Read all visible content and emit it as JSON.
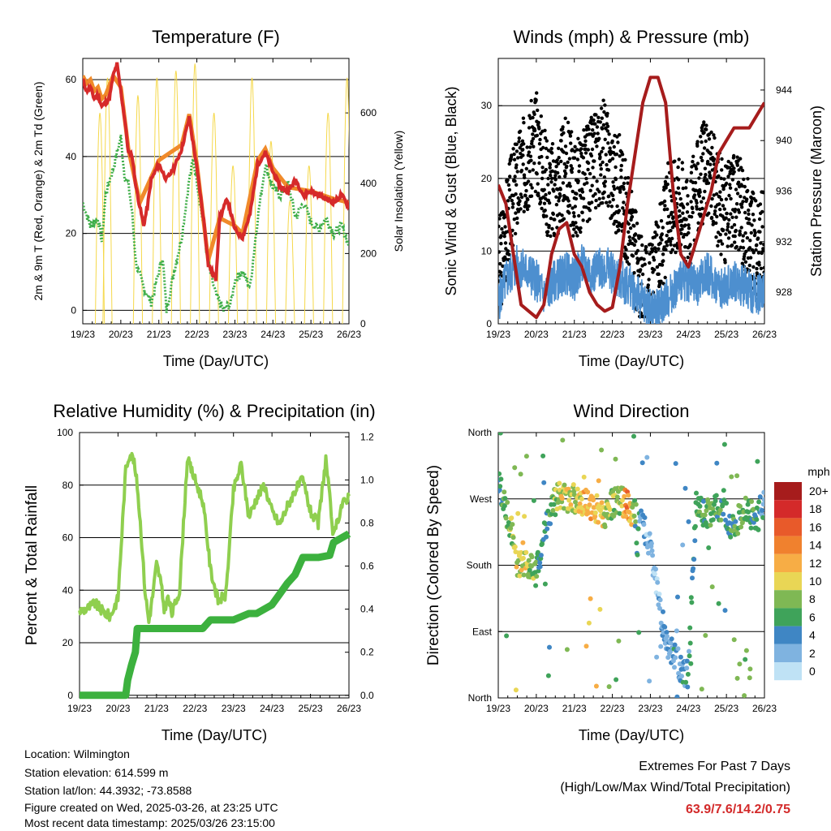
{
  "charts": {
    "temperature": {
      "title": "Temperature (F)",
      "xlabel": "Time (Day/UTC)",
      "ylabel_left": "2m & 9m T (Red, Orange) & 2m Td (Green)",
      "ylabel_right": "Solar Insolation (Yellow)"
    },
    "winds": {
      "title": "Winds (mph) & Pressure (mb)",
      "xlabel": "Time (Day/UTC)",
      "ylabel_left": "Sonic Wind & Gust (Blue, Black)",
      "ylabel_right": "Station Pressure (Maroon)"
    },
    "humidity": {
      "title": "Relative Humidity (%) & Precipitation (in)",
      "xlabel": "Time (Day/UTC)",
      "ylabel_left": "Percent & Total Rainfall"
    },
    "direction": {
      "title": "Wind Direction",
      "xlabel": "Time (Day/UTC)",
      "ylabel_left": "Direction (Colored By Speed)",
      "legend_title": "mph"
    }
  },
  "chart_data": [
    {
      "type": "line",
      "title": "Temperature (F)",
      "xlabel": "Time (Day/UTC)",
      "ylabel": "2m & 9m T (Red, Orange) & 2m Td (Green)",
      "y2label": "Solar Insolation (Yellow)",
      "x_ticks": [
        "19/23",
        "20/23",
        "21/23",
        "22/23",
        "23/23",
        "24/23",
        "25/23",
        "26/23"
      ],
      "xlim": [
        0,
        7
      ],
      "ylim": [
        -3.5,
        65.5
      ],
      "y_ticks": [
        0,
        20,
        40,
        60
      ],
      "y2lim": [
        0,
        755
      ],
      "y2_ticks": [
        0,
        200,
        400,
        600
      ],
      "grid": "horizontal at left y ticks",
      "series": [
        {
          "name": "2m T",
          "color": "#d62a2a",
          "axis": "left",
          "x": [
            0,
            0.1,
            0.2,
            0.3,
            0.4,
            0.5,
            0.7,
            0.8,
            0.9,
            1.0,
            1.1,
            1.2,
            1.3,
            1.4,
            1.5,
            1.6,
            1.7,
            1.8,
            2.0,
            2.2,
            2.4,
            2.6,
            2.8,
            3.0,
            3.2,
            3.3,
            3.5,
            3.6,
            3.8,
            4.0,
            4.2,
            4.4,
            4.6,
            4.8,
            5.0,
            5.1,
            5.2,
            5.4,
            5.6,
            5.8,
            6.0,
            6.2,
            6.4,
            6.6,
            6.8,
            7.0
          ],
          "y": [
            60,
            57,
            58,
            55,
            56,
            53,
            55,
            61,
            64,
            57,
            50,
            41,
            40,
            32,
            27,
            22,
            27,
            34,
            38,
            34,
            37,
            42,
            50,
            37,
            22,
            12,
            8,
            24,
            29,
            21,
            19,
            25,
            38,
            41,
            36,
            34,
            32,
            31,
            34,
            30,
            31,
            30,
            29,
            28,
            30,
            27
          ]
        },
        {
          "name": "9m T",
          "color": "#f08a2a",
          "axis": "left",
          "x": [
            0,
            0.1,
            0.2,
            0.3,
            0.4,
            0.5,
            0.6,
            0.8,
            1.0,
            1.2,
            1.5,
            2.0,
            2.6,
            2.8,
            3.0,
            3.3,
            3.6,
            4.0,
            4.2,
            4.6,
            4.8,
            5.0,
            5.4,
            6.0,
            6.6,
            7.0
          ],
          "y": [
            61,
            59,
            60,
            57,
            58,
            55,
            56,
            61,
            58,
            42,
            28,
            39,
            43,
            51,
            38,
            13,
            24,
            22,
            20,
            39,
            42,
            37,
            32,
            31,
            29,
            28
          ]
        },
        {
          "name": "2m Td",
          "color": "#3fae49",
          "axis": "left",
          "x": [
            0,
            0.2,
            0.4,
            0.5,
            0.6,
            0.8,
            1.0,
            1.1,
            1.2,
            1.3,
            1.4,
            1.6,
            1.8,
            2.0,
            2.1,
            2.2,
            2.4,
            2.6,
            2.8,
            2.9,
            3.0,
            3.2,
            3.3,
            3.5,
            3.7,
            3.9,
            4.0,
            4.2,
            4.4,
            4.6,
            4.8,
            5.0,
            5.2,
            5.4,
            5.6,
            5.8,
            6.0,
            6.2,
            6.4,
            6.6,
            6.8,
            7.0
          ],
          "y": [
            28,
            22,
            24,
            18,
            30,
            37,
            45,
            35,
            33,
            25,
            12,
            6,
            2,
            10,
            14,
            0,
            10,
            19,
            34,
            39,
            34,
            20,
            12,
            4,
            0,
            2,
            8,
            10,
            6,
            24,
            38,
            32,
            30,
            33,
            24,
            28,
            23,
            21,
            24,
            20,
            22,
            17
          ]
        },
        {
          "name": "Solar Insolation",
          "color": "#f5d84a",
          "axis": "right",
          "type": "daily-pulses",
          "peak_times": [
            0.45,
            0.65,
            1.45,
            1.95,
            2.45,
            2.95,
            3.45,
            3.95,
            4.45,
            4.95,
            5.45,
            5.95,
            6.45,
            6.95
          ],
          "peak_values": [
            600,
            700,
            650,
            700,
            720,
            740,
            600,
            450,
            700,
            520,
            350,
            450,
            600,
            700
          ]
        }
      ]
    },
    {
      "type": "scatter",
      "title": "Winds (mph) & Pressure (mb)",
      "xlabel": "Time (Day/UTC)",
      "ylabel": "Sonic Wind & Gust (Blue, Black)",
      "y2label": "Station Pressure (Maroon)",
      "x_ticks": [
        "19/23",
        "20/23",
        "21/23",
        "22/23",
        "23/23",
        "24/23",
        "25/23",
        "26/23"
      ],
      "xlim": [
        0,
        7
      ],
      "ylim": [
        0,
        36.5
      ],
      "y_ticks": [
        0,
        10,
        20,
        30
      ],
      "y2lim": [
        925.5,
        946.5
      ],
      "y2_ticks": [
        928,
        932,
        936,
        940,
        944
      ],
      "grid": "horizontal at left y ticks",
      "series": [
        {
          "name": "Gust",
          "color": "#000000",
          "style": "dots",
          "x": [
            0,
            0.3,
            0.6,
            1.0,
            1.3,
            1.5,
            1.8,
            2.0,
            2.2,
            2.5,
            2.8,
            3.0,
            3.2,
            3.5,
            3.8,
            4.0,
            4.2,
            4.5,
            4.8,
            5.0,
            5.2,
            5.5,
            5.8,
            6.0,
            6.2,
            6.5,
            6.8,
            7.0
          ],
          "y": [
            7,
            16,
            21,
            25,
            19,
            18,
            22,
            18,
            20,
            22,
            24,
            20,
            19,
            12,
            4,
            4,
            8,
            16,
            17,
            13,
            18,
            22,
            17,
            15,
            18,
            14,
            10,
            12
          ]
        },
        {
          "name": "Sonic Wind",
          "color": "#4d8fcf",
          "style": "line",
          "x": [
            0,
            0.2,
            0.5,
            0.8,
            1.0,
            1.2,
            1.5,
            1.8,
            2.0,
            2.2,
            2.5,
            2.8,
            3.0,
            3.2,
            3.5,
            3.8,
            4.0,
            4.2,
            4.5,
            4.8,
            5.0,
            5.2,
            5.5,
            5.8,
            6.0,
            6.2,
            6.5,
            6.8,
            7.0
          ],
          "y": [
            3,
            6,
            8,
            7,
            6,
            4,
            6,
            7,
            6,
            8,
            7,
            8,
            7,
            6,
            5,
            3,
            2,
            2,
            4,
            6,
            6,
            5,
            7,
            5,
            5,
            6,
            5,
            4,
            5
          ]
        },
        {
          "name": "Station Pressure",
          "color": "#a61c1c",
          "axis": "right",
          "x": [
            0,
            0.2,
            0.4,
            0.6,
            0.8,
            1.0,
            1.2,
            1.4,
            1.6,
            1.8,
            2.0,
            2.2,
            2.4,
            2.6,
            2.8,
            3.0,
            3.2,
            3.4,
            3.6,
            3.8,
            4.0,
            4.2,
            4.4,
            4.6,
            4.8,
            5.0,
            5.2,
            5.4,
            5.6,
            5.8,
            6.0,
            6.2,
            6.4,
            6.6,
            6.8,
            7.0
          ],
          "y": [
            936.5,
            935,
            931,
            927,
            926.5,
            926,
            927,
            931,
            933,
            933.5,
            931,
            930,
            928,
            927,
            926.5,
            926.8,
            930,
            935,
            939,
            943,
            945,
            945,
            943,
            936,
            931,
            930,
            932,
            934,
            936,
            939,
            940,
            941,
            941,
            941,
            942,
            943
          ]
        }
      ]
    },
    {
      "type": "line",
      "title": "Relative Humidity (%) & Precipitation (in)",
      "xlabel": "Time (Day/UTC)",
      "ylabel": "Percent & Total Rainfall",
      "x_ticks": [
        "19/23",
        "20/23",
        "21/23",
        "22/23",
        "23/23",
        "24/23",
        "25/23",
        "26/23"
      ],
      "xlim": [
        0,
        7
      ],
      "ylim": [
        -1,
        100
      ],
      "y_ticks": [
        0,
        20,
        40,
        60,
        80,
        100
      ],
      "y2lim": [
        -0.012,
        1.22
      ],
      "y2_ticks": [
        0.0,
        0.2,
        0.4,
        0.6,
        0.8,
        1.0,
        1.2
      ],
      "grid": "horizontal at left y ticks",
      "series": [
        {
          "name": "Relative Humidity",
          "color": "#8fcf4f",
          "axis": "left",
          "x": [
            0,
            0.2,
            0.4,
            0.6,
            0.8,
            1.0,
            1.2,
            1.3,
            1.4,
            1.5,
            1.6,
            1.7,
            1.8,
            1.9,
            2.0,
            2.1,
            2.2,
            2.3,
            2.4,
            2.6,
            2.8,
            3.0,
            3.2,
            3.3,
            3.4,
            3.6,
            3.8,
            4.0,
            4.2,
            4.4,
            4.6,
            4.8,
            5.0,
            5.2,
            5.4,
            5.6,
            5.8,
            6.0,
            6.2,
            6.4,
            6.6,
            6.8,
            7.0
          ],
          "y": [
            32,
            33,
            35,
            32,
            30,
            37,
            86,
            92,
            90,
            80,
            62,
            40,
            28,
            38,
            50,
            44,
            33,
            37,
            31,
            40,
            90,
            82,
            74,
            62,
            48,
            36,
            38,
            78,
            88,
            68,
            75,
            80,
            70,
            65,
            72,
            78,
            82,
            70,
            65,
            90,
            60,
            72,
            76
          ]
        },
        {
          "name": "Total Precipitation",
          "color": "#3cb13e",
          "axis": "right",
          "x": [
            0,
            1.2,
            1.25,
            1.35,
            1.45,
            1.5,
            1.6,
            2.5,
            3.2,
            3.4,
            4.0,
            4.4,
            4.6,
            5.0,
            5.2,
            5.4,
            5.6,
            5.8,
            6.2,
            6.5,
            6.6,
            7.0
          ],
          "y": [
            0,
            0,
            0.07,
            0.14,
            0.2,
            0.31,
            0.31,
            0.31,
            0.31,
            0.35,
            0.35,
            0.38,
            0.38,
            0.42,
            0.47,
            0.52,
            0.56,
            0.64,
            0.64,
            0.65,
            0.71,
            0.75
          ]
        }
      ]
    },
    {
      "type": "scatter",
      "title": "Wind Direction",
      "xlabel": "Time (Day/UTC)",
      "ylabel": "Direction (Colored By Speed)",
      "x_ticks": [
        "19/23",
        "20/23",
        "21/23",
        "22/23",
        "23/23",
        "24/23",
        "25/23",
        "26/23"
      ],
      "xlim": [
        0,
        7
      ],
      "ylim": [
        0,
        360
      ],
      "y_tick_values": [
        0,
        90,
        180,
        270,
        360
      ],
      "y_ticks": [
        "North",
        "East",
        "South",
        "West",
        "North"
      ],
      "grid": "horizontal at direction ticks",
      "legend": {
        "title": "mph",
        "placement": "right",
        "labels": [
          "20+",
          "18",
          "16",
          "14",
          "12",
          "10",
          "8",
          "6",
          "4",
          "2",
          "0"
        ],
        "colors": [
          "#a61c1c",
          "#d42a2a",
          "#e85a2a",
          "#f0812e",
          "#f7ad45",
          "#e9d655",
          "#7fb854",
          "#3fa35a",
          "#3f86c4",
          "#7fb3e0",
          "#bfe2f5"
        ]
      },
      "series": [
        {
          "name": "",
          "style": "clusters",
          "x": [
            0,
            0.3,
            0.5,
            0.8,
            1.0,
            1.2,
            1.5,
            1.7,
            2.0,
            2.2,
            2.5,
            2.8,
            3.0,
            3.2,
            3.4,
            3.6,
            3.8,
            4.0,
            4.2,
            4.4,
            4.6,
            4.8,
            5.0,
            5.2,
            5.5,
            5.8,
            6.0,
            6.2,
            6.5,
            6.8,
            7.0
          ],
          "y": [
            290,
            240,
            180,
            180,
            170,
            220,
            270,
            275,
            270,
            265,
            260,
            250,
            265,
            270,
            260,
            250,
            230,
            210,
            140,
            80,
            60,
            40,
            30,
            260,
            250,
            260,
            245,
            230,
            260,
            240,
            270
          ],
          "speed": [
            5,
            8,
            10,
            9,
            6,
            4,
            8,
            10,
            9,
            11,
            12,
            9,
            8,
            8,
            14,
            6,
            3,
            2,
            2,
            3,
            4,
            3,
            4,
            6,
            7,
            6,
            5,
            6,
            7,
            5,
            4
          ]
        }
      ]
    }
  ],
  "info": {
    "location": "Location: Wilmington",
    "elevation": "Station elevation: 614.599 m",
    "latlon": "Station lat/lon: 44.3932; -73.8588",
    "created": "Figure created on Wed, 2025-03-26, at 23:25 UTC",
    "recent": "Most recent data timestamp: 2025/03/26 23:15:00"
  },
  "extremes": {
    "heading": "Extremes For Past 7 Days",
    "subheading": "(High/Low/Max Wind/Total Precipitation)",
    "values": "63.9/7.6/14.2/0.75",
    "value_color": "#d32a2a"
  }
}
